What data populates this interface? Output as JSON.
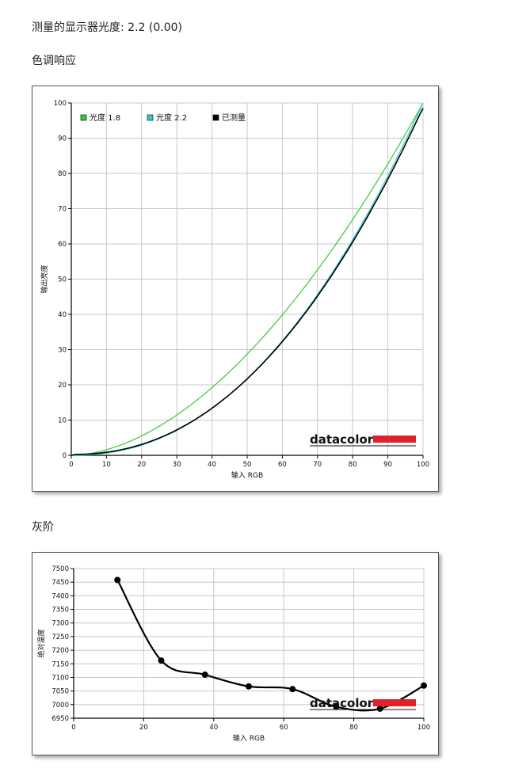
{
  "measured_gamma_label": "测量的显示器光度: 2.2 (0.00)",
  "section_tone": "色调响应",
  "section_gray": "灰阶",
  "brand": {
    "name": "datacolor",
    "bar_color": "#e0202a",
    "text_color": "#111111"
  },
  "chart_data": [
    {
      "type": "line",
      "xlabel": "输入 RGB",
      "ylabel": "输出亮度",
      "xlim": [
        0,
        100
      ],
      "ylim": [
        0,
        100
      ],
      "xticks": [
        0,
        10,
        20,
        30,
        40,
        50,
        60,
        70,
        80,
        90,
        100
      ],
      "yticks": [
        0,
        10,
        20,
        30,
        40,
        50,
        60,
        70,
        80,
        90,
        100
      ],
      "grid": true,
      "legend_position": "top-left",
      "series": [
        {
          "name": "光度 1.8",
          "color": "#33cc33",
          "gamma": 1.8
        },
        {
          "name": "光度 2.2",
          "color": "#33cccc",
          "gamma": 2.2
        },
        {
          "name": "已测量",
          "color": "#000000",
          "gamma": 2.2
        }
      ]
    },
    {
      "type": "line",
      "xlabel": "输入 RGB",
      "ylabel": "绝对温度",
      "xlim": [
        0,
        100
      ],
      "ylim": [
        6950,
        7500
      ],
      "xticks": [
        0,
        20,
        40,
        60,
        80,
        100
      ],
      "yticks": [
        6950,
        7000,
        7050,
        7100,
        7150,
        7200,
        7250,
        7300,
        7350,
        7400,
        7450,
        7500
      ],
      "grid": true,
      "series": [
        {
          "color": "#000000",
          "x": [
            12.5,
            25,
            37.5,
            50,
            62.5,
            75,
            87.5,
            100
          ],
          "y": [
            7458,
            7162,
            7110,
            7067,
            7057,
            6992,
            6985,
            7070
          ]
        }
      ]
    }
  ]
}
